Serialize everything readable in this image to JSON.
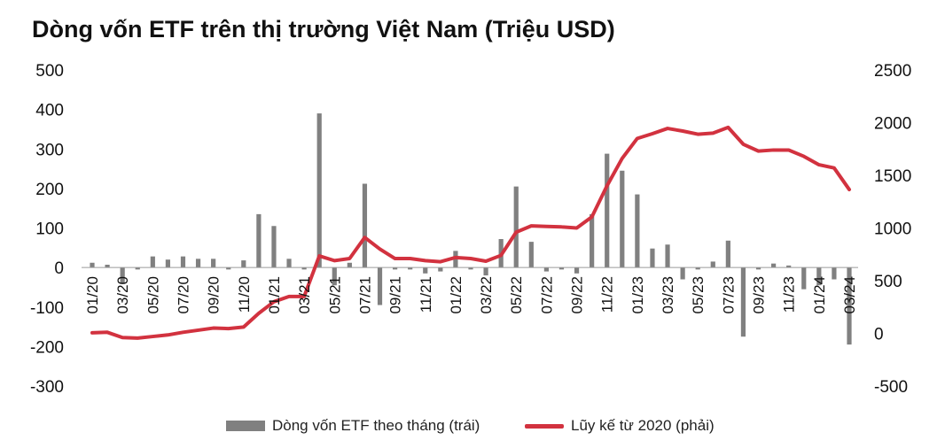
{
  "chart_data": {
    "type": "bar+line",
    "title": "Dòng vốn ETF trên thị trường Việt Nam (Triệu USD)",
    "categories": [
      "01/20",
      "02/20",
      "03/20",
      "04/20",
      "05/20",
      "06/20",
      "07/20",
      "08/20",
      "09/20",
      "10/20",
      "11/20",
      "12/20",
      "01/21",
      "02/21",
      "03/21",
      "04/21",
      "05/21",
      "06/21",
      "07/21",
      "08/21",
      "09/21",
      "10/21",
      "11/21",
      "12/21",
      "01/22",
      "02/22",
      "03/22",
      "04/22",
      "05/22",
      "06/22",
      "07/22",
      "08/22",
      "09/22",
      "10/22",
      "11/22",
      "12/22",
      "01/23",
      "02/23",
      "03/23",
      "04/23",
      "05/23",
      "06/23",
      "07/23",
      "08/23",
      "09/23",
      "10/23",
      "11/23",
      "12/23",
      "01/24",
      "02/24",
      "03/24"
    ],
    "tick_labels": [
      "01/20",
      "03/20",
      "05/20",
      "07/20",
      "09/20",
      "11/20",
      "01/21",
      "03/21",
      "05/21",
      "07/21",
      "09/21",
      "11/21",
      "01/22",
      "03/22",
      "05/22",
      "07/22",
      "09/22",
      "11/22",
      "01/23",
      "03/23",
      "05/23",
      "07/23",
      "09/23",
      "11/23",
      "01/24",
      "03/24"
    ],
    "series": [
      {
        "name": "Dòng vốn ETF theo tháng (trái)",
        "type": "bar",
        "axis": "left",
        "color": "#808080",
        "values": [
          12,
          7,
          -40,
          -5,
          28,
          20,
          28,
          22,
          22,
          -5,
          18,
          135,
          105,
          22,
          -5,
          390,
          -45,
          12,
          212,
          -95,
          -5,
          -5,
          -15,
          -10,
          42,
          -5,
          -20,
          72,
          205,
          65,
          -10,
          -5,
          -15,
          135,
          288,
          245,
          185,
          48,
          58,
          -30,
          -5,
          15,
          68,
          -175,
          -5,
          10,
          5,
          -55,
          -45,
          -30,
          -195
        ]
      },
      {
        "name": "Lũy kế từ 2020 (phải)",
        "type": "line",
        "axis": "right",
        "color": "#d2323f",
        "values": [
          5,
          10,
          -40,
          -45,
          -30,
          -15,
          10,
          30,
          50,
          45,
          60,
          190,
          300,
          350,
          350,
          735,
          690,
          710,
          910,
          800,
          710,
          710,
          690,
          680,
          720,
          710,
          685,
          740,
          960,
          1020,
          1015,
          1010,
          1000,
          1105,
          1400,
          1660,
          1850,
          1895,
          1945,
          1920,
          1890,
          1900,
          1955,
          1795,
          1730,
          1740,
          1740,
          1680,
          1600,
          1570,
          1365
        ]
      }
    ],
    "y_left": {
      "ticks": [
        500,
        400,
        300,
        200,
        100,
        0,
        -100,
        -200,
        -300
      ],
      "ylim": [
        -300,
        500
      ]
    },
    "y_right": {
      "ticks": [
        2500,
        2000,
        1500,
        1000,
        500,
        0,
        -500
      ],
      "ylim": [
        -500,
        2500
      ]
    },
    "legend_position": "bottom-center",
    "grid": false
  }
}
